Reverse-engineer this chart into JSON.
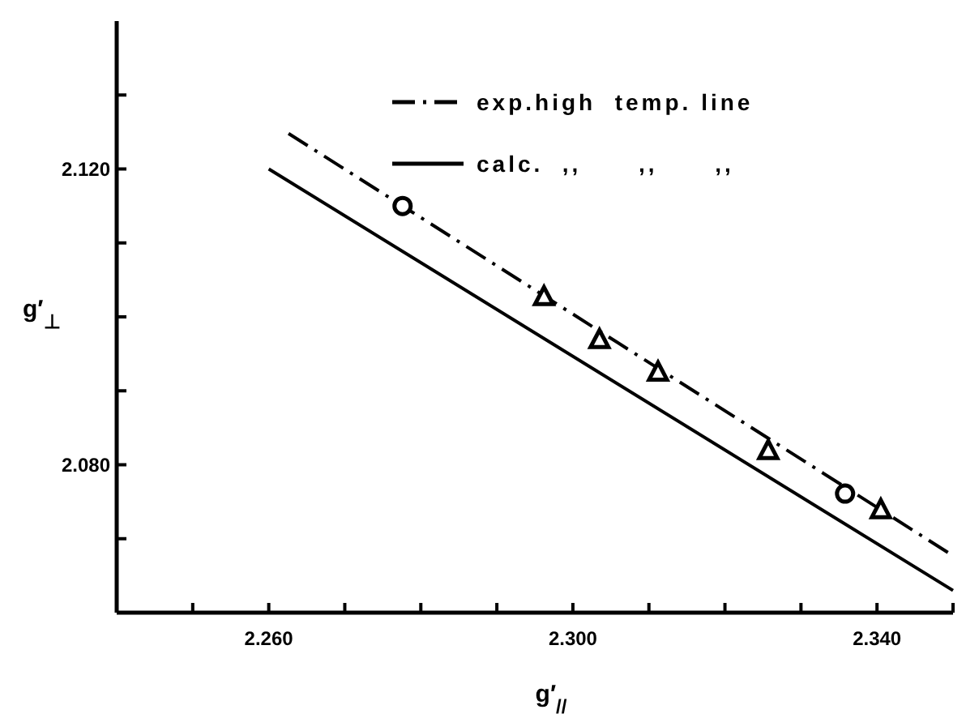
{
  "chart_data": {
    "type": "line",
    "xlabel": "g′$_{//}$",
    "ylabel": "g′$_{⊥}$",
    "xlim": [
      2.24,
      2.35
    ],
    "ylim": [
      2.06,
      2.14
    ],
    "xticks": [
      {
        "value": 2.25,
        "label": null
      },
      {
        "value": 2.26,
        "label": "2.260"
      },
      {
        "value": 2.27,
        "label": null
      },
      {
        "value": 2.28,
        "label": null
      },
      {
        "value": 2.29,
        "label": null
      },
      {
        "value": 2.3,
        "label": "2.300"
      },
      {
        "value": 2.31,
        "label": null
      },
      {
        "value": 2.32,
        "label": null
      },
      {
        "value": 2.33,
        "label": null
      },
      {
        "value": 2.34,
        "label": "2.340"
      },
      {
        "value": 2.35,
        "label": null
      }
    ],
    "yticks": [
      {
        "value": 2.07,
        "label": null
      },
      {
        "value": 2.08,
        "label": "2.080"
      },
      {
        "value": 2.09,
        "label": null
      },
      {
        "value": 2.1,
        "label": null
      },
      {
        "value": 2.11,
        "label": null
      },
      {
        "value": 2.12,
        "label": "2.120"
      },
      {
        "value": 2.13,
        "label": null
      }
    ],
    "grid": false,
    "legend": "top right",
    "series": [
      {
        "name": "exp.high  temp. line",
        "color": "#000000",
        "line_style": "dashed",
        "x": [
          2.2626,
          2.35
        ],
        "values": [
          2.1248,
          2.0677
        ]
      },
      {
        "name": "calc.  ,,      ,,      ,,",
        "color": "#000000",
        "line_style": "solid",
        "x": [
          2.26,
          2.35
        ],
        "values": [
          2.12,
          2.063
        ]
      },
      {
        "type": "scatter",
        "color": "#000000",
        "marker": "circle",
        "x": [
          2.2776,
          2.3358
        ],
        "values": [
          2.115,
          2.0761
        ]
      },
      {
        "type": "scatter",
        "color": "#000000",
        "marker": "triangle",
        "x": [
          2.2962,
          2.3035,
          2.3112,
          2.3257,
          2.3405
        ],
        "values": [
          2.1027,
          2.0969,
          2.0925,
          2.0819,
          2.0739
        ]
      }
    ]
  }
}
